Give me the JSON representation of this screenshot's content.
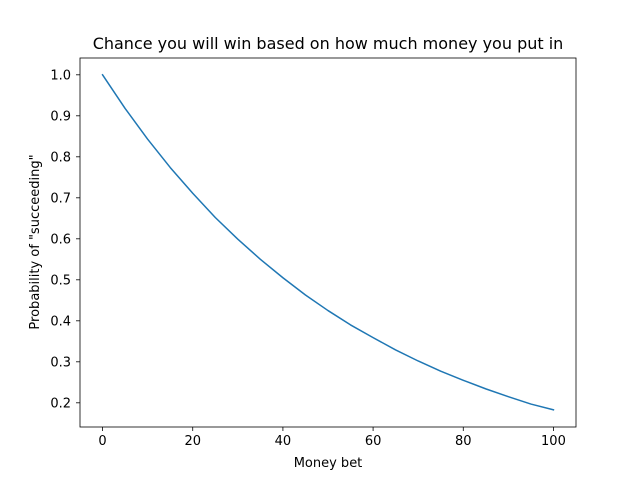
{
  "chart_data": {
    "type": "line",
    "title": "Chance you will win based on how much money you put in",
    "xlabel": "Money bet",
    "ylabel": "Probability of \"succeeding\"",
    "xlim": [
      -5,
      105
    ],
    "ylim": [
      0.141,
      1.041
    ],
    "x_ticks": [
      0,
      20,
      40,
      60,
      80,
      100
    ],
    "y_ticks": [
      0.2,
      0.3,
      0.4,
      0.5,
      0.6,
      0.7,
      0.8,
      0.9,
      1.0
    ],
    "x_tick_labels": [
      "0",
      "20",
      "40",
      "60",
      "80",
      "100"
    ],
    "y_tick_labels": [
      "0.2",
      "0.3",
      "0.4",
      "0.5",
      "0.6",
      "0.7",
      "0.8",
      "0.9",
      "1.0"
    ],
    "grid": false,
    "line_color": "#1f77b4",
    "series": [
      {
        "x": [
          0,
          5,
          10,
          15,
          20,
          25,
          30,
          35,
          40,
          45,
          50,
          55,
          60,
          65,
          70,
          75,
          80,
          85,
          90,
          95,
          100
        ],
        "values": [
          1.0,
          0.918,
          0.843,
          0.774,
          0.711,
          0.652,
          0.599,
          0.55,
          0.505,
          0.463,
          0.425,
          0.39,
          0.359,
          0.329,
          0.302,
          0.277,
          0.255,
          0.234,
          0.215,
          0.197,
          0.183
        ]
      }
    ]
  }
}
